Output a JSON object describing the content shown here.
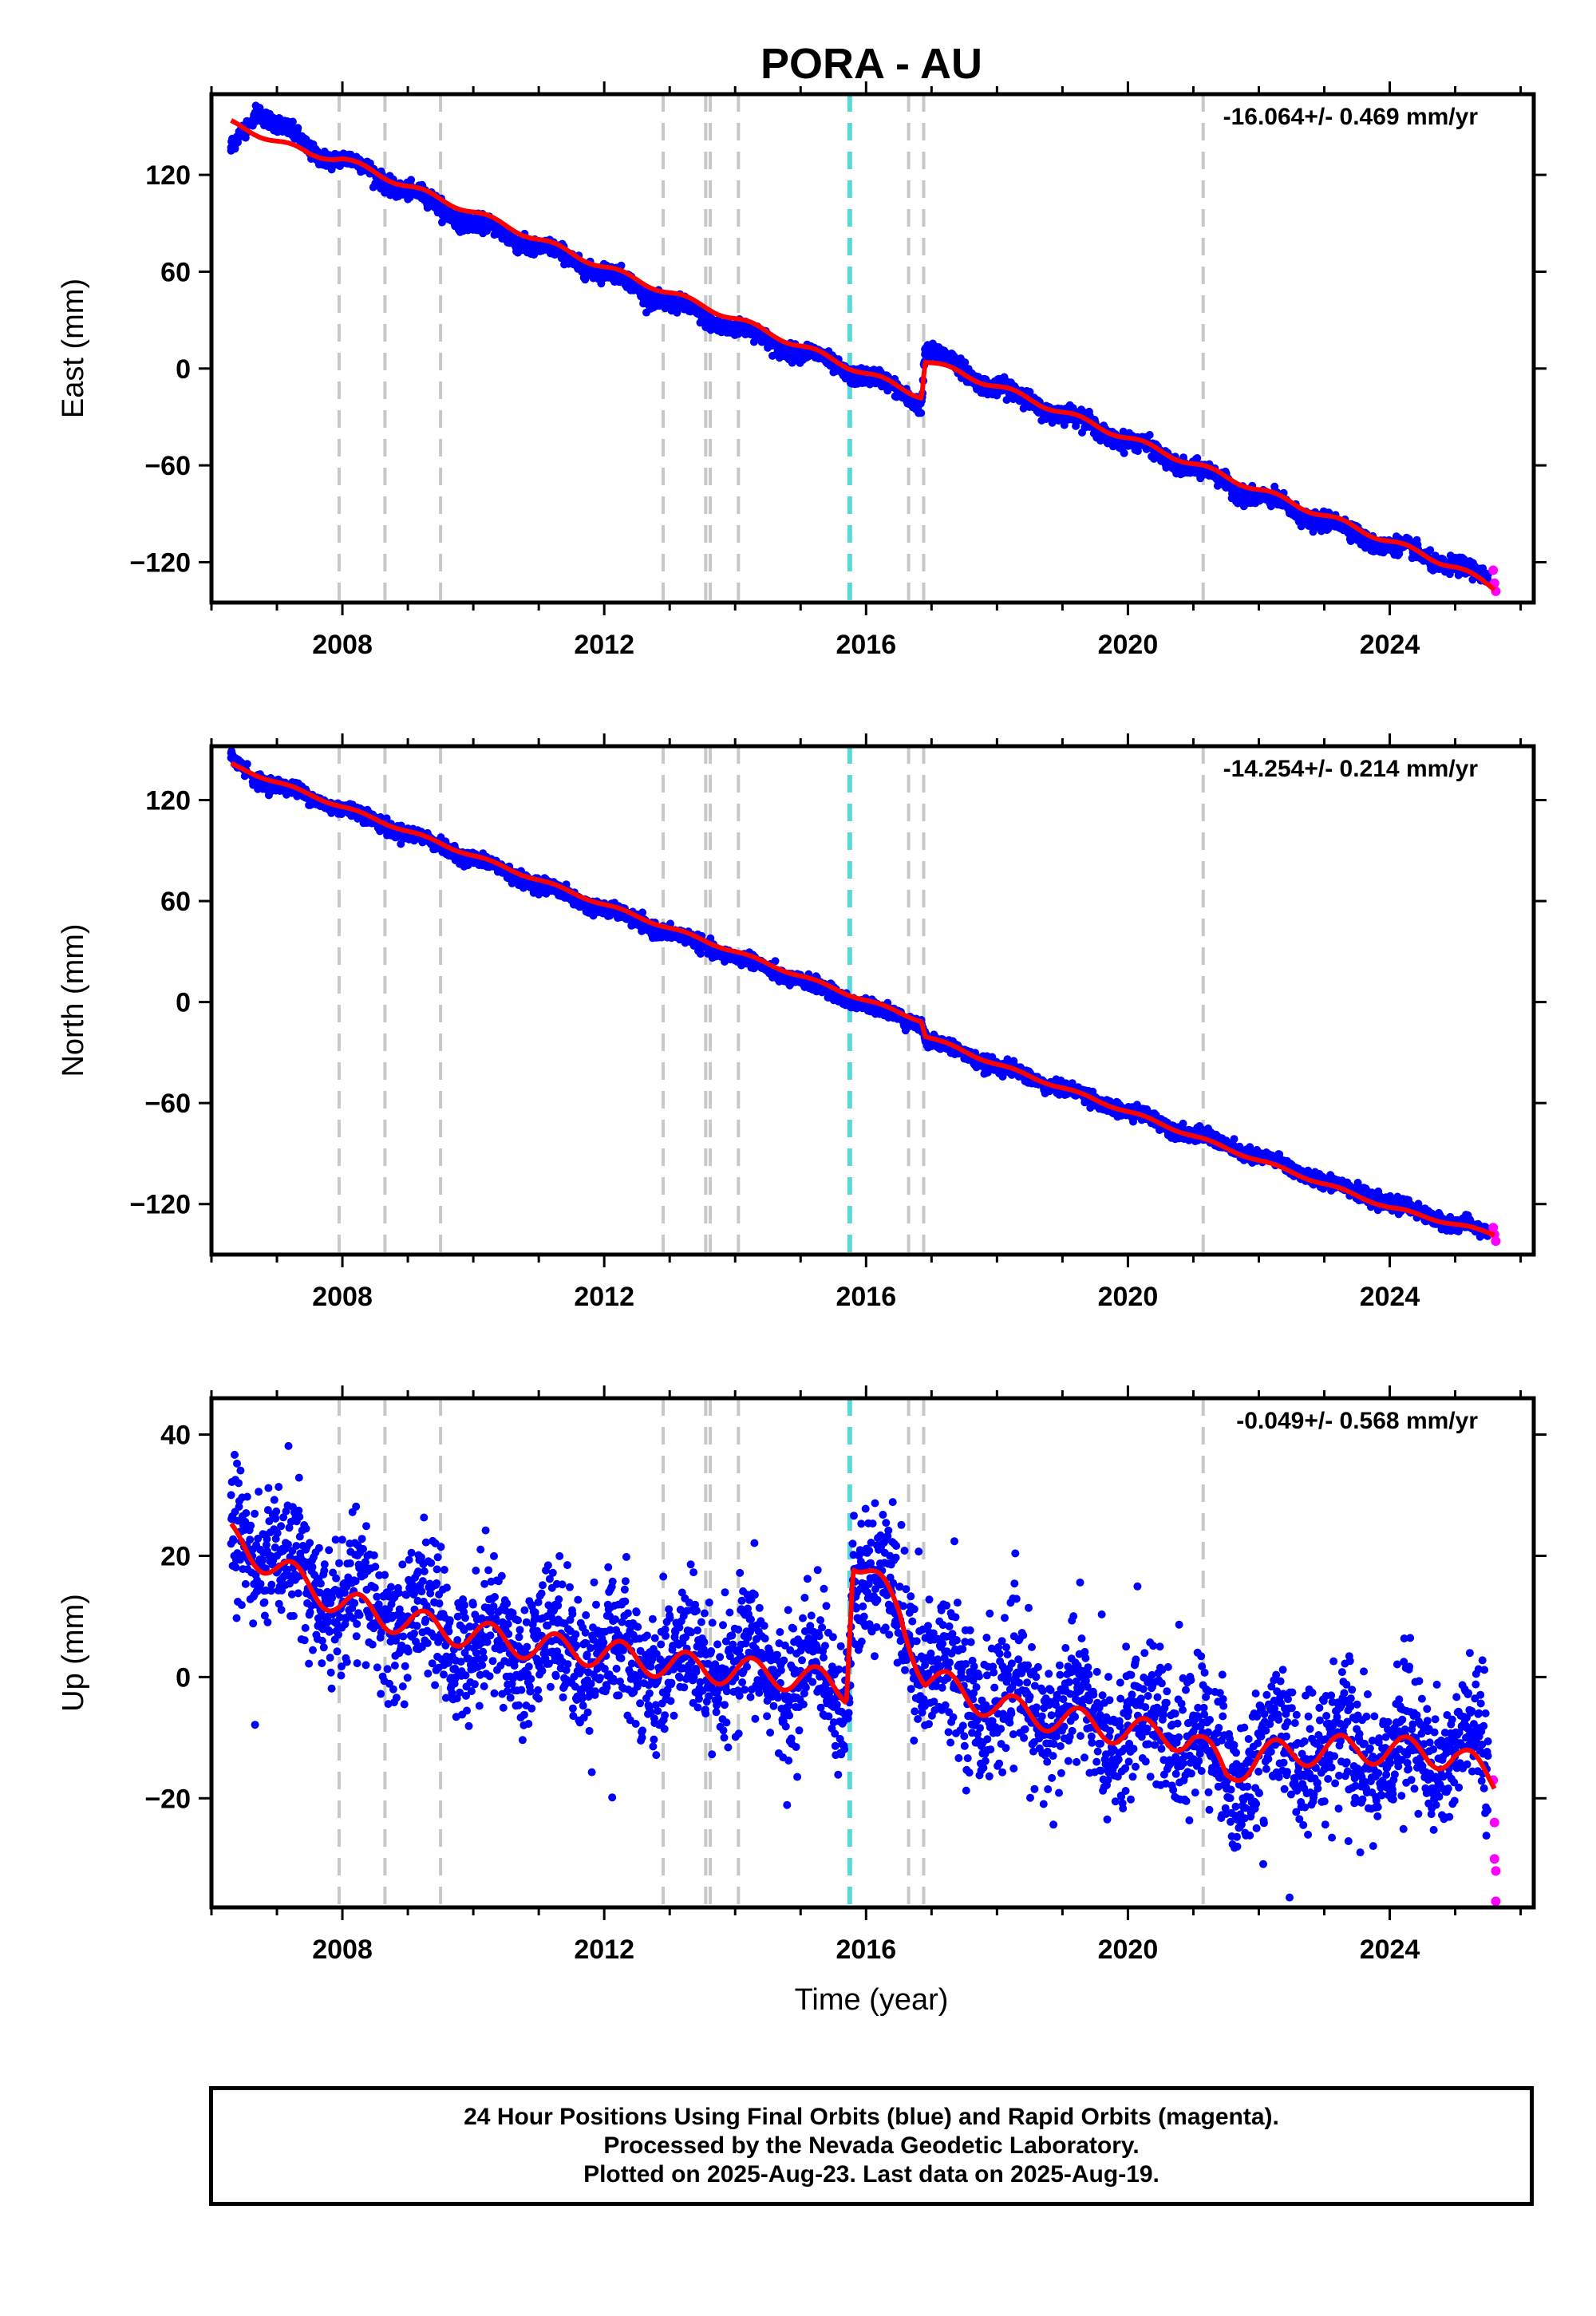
{
  "title": "PORA - AU",
  "xlabel": "Time (year)",
  "footer": {
    "line1": "24 Hour Positions Using Final Orbits (blue) and Rapid Orbits (magenta).",
    "line2": "Processed by the Nevada Geodetic Laboratory.",
    "line3": "Plotted on 2025-Aug-23. Last data on 2025-Aug-19."
  },
  "colors": {
    "final": "#0000ff",
    "rapid": "#ff00ff",
    "model": "#ff0000",
    "equipment_change": "#c8c8c8",
    "earthquake": "#5ad7d7"
  },
  "chart_data": [
    {
      "type": "scatter",
      "component": "East",
      "ylabel": "East (mm)",
      "rate_text": "-16.064+/- 0.469 mm/yr",
      "xlim": [
        2006.0,
        2026.2
      ],
      "ylim": [
        -145,
        170
      ],
      "xticks": [
        2008,
        2012,
        2016,
        2020,
        2024
      ],
      "yticks": [
        -120,
        -60,
        0,
        60,
        120
      ],
      "vlines_equipment": [
        2007.95,
        2008.65,
        2009.5,
        2012.9,
        2013.55,
        2013.62,
        2014.05,
        2016.65,
        2016.88,
        2021.15
      ],
      "vlines_earthquake": [
        2015.75
      ],
      "offsets": [
        {
          "x": 2016.88,
          "dy": 22
        }
      ],
      "series": [
        {
          "name": "Final Orbits",
          "x": [
            2006.3,
            2006.7,
            2007.5,
            2008.0,
            2009.0,
            2010.0,
            2011.0,
            2012.0,
            2013.0,
            2014.0,
            2015.0,
            2016.0,
            2016.85,
            2016.9,
            2018.0,
            2019.0,
            2020.0,
            2021.0,
            2022.0,
            2023.0,
            2024.0,
            2025.0,
            2025.5
          ],
          "y": [
            135,
            162,
            135,
            130,
            110,
            90,
            75,
            60,
            40,
            25,
            10,
            -5,
            -20,
            12,
            -12,
            -28,
            -45,
            -62,
            -80,
            -95,
            -110,
            -122,
            -132
          ]
        },
        {
          "name": "Rapid Orbits",
          "x": [
            2025.58,
            2025.6,
            2025.62
          ],
          "y": [
            -125,
            -133,
            -138
          ]
        },
        {
          "name": "Model",
          "x": [
            2006.3,
            2007.5,
            2008.0,
            2009.0,
            2010.0,
            2011.0,
            2012.0,
            2013.0,
            2014.0,
            2015.0,
            2016.0,
            2016.85,
            2016.9,
            2018.0,
            2019.0,
            2020.0,
            2021.0,
            2022.0,
            2023.0,
            2024.0,
            2025.0,
            2025.6
          ],
          "y": [
            152,
            133,
            130,
            113,
            97,
            80,
            63,
            47,
            31,
            14,
            -3,
            -17,
            5,
            -11,
            -27,
            -43,
            -59,
            -75,
            -91,
            -107,
            -123,
            -136
          ]
        }
      ]
    },
    {
      "type": "scatter",
      "component": "North",
      "ylabel": "North (mm)",
      "rate_text": "-14.254+/- 0.214 mm/yr",
      "xlim": [
        2006.0,
        2026.2
      ],
      "ylim": [
        -150,
        152
      ],
      "xticks": [
        2008,
        2012,
        2016,
        2020,
        2024
      ],
      "yticks": [
        -120,
        -60,
        0,
        60,
        120
      ],
      "vlines_equipment": [
        2007.95,
        2008.65,
        2009.5,
        2012.9,
        2013.55,
        2013.62,
        2014.05,
        2016.65,
        2016.88,
        2021.15
      ],
      "vlines_earthquake": [
        2015.75
      ],
      "offsets": [
        {
          "x": 2016.88,
          "dy": -9
        }
      ],
      "series": [
        {
          "name": "Final Orbits",
          "x": [
            2006.3,
            2006.7,
            2008.0,
            2010.0,
            2012.0,
            2014.0,
            2016.0,
            2016.85,
            2016.9,
            2018.0,
            2020.0,
            2022.0,
            2024.0,
            2025.5
          ],
          "y": [
            145,
            133,
            115,
            85,
            55,
            27,
            -2,
            -13,
            -22,
            -38,
            -65,
            -92,
            -120,
            -137
          ]
        },
        {
          "name": "Rapid Orbits",
          "x": [
            2025.58,
            2025.6,
            2025.62
          ],
          "y": [
            -134,
            -138,
            -142
          ]
        },
        {
          "name": "Model",
          "x": [
            2006.3,
            2006.7,
            2008.0,
            2010.0,
            2012.0,
            2014.0,
            2016.0,
            2016.85,
            2016.9,
            2018.0,
            2020.0,
            2022.0,
            2024.0,
            2025.6
          ],
          "y": [
            141,
            135,
            116,
            87,
            58,
            30,
            1,
            -11,
            -20,
            -37,
            -65,
            -94,
            -122,
            -138
          ]
        }
      ]
    },
    {
      "type": "scatter",
      "component": "Up",
      "ylabel": "Up (mm)",
      "rate_text": "-0.049+/- 0.568 mm/yr",
      "xlim": [
        2006.0,
        2026.2
      ],
      "ylim": [
        -38,
        46
      ],
      "xticks": [
        2008,
        2012,
        2016,
        2020,
        2024
      ],
      "yticks": [
        -20,
        0,
        20,
        40
      ],
      "vlines_equipment": [
        2007.95,
        2008.65,
        2009.5,
        2012.9,
        2013.55,
        2013.62,
        2014.05,
        2016.65,
        2016.88,
        2021.15
      ],
      "vlines_earthquake": [
        2015.75
      ],
      "offsets": [
        {
          "x": 2015.75,
          "dy": 22
        },
        {
          "x": 2016.88,
          "dy": -12
        }
      ],
      "series": [
        {
          "name": "Final Orbits",
          "x": [
            2006.3,
            2007.0,
            2008.0,
            2009.0,
            2010.0,
            2011.0,
            2012.0,
            2013.0,
            2014.0,
            2015.0,
            2015.7,
            2015.8,
            2016.5,
            2016.9,
            2018.0,
            2019.0,
            2020.0,
            2021.0,
            2021.5,
            2022.0,
            2023.0,
            2024.0,
            2025.0,
            2025.5
          ],
          "y": [
            22,
            20,
            12,
            10,
            6,
            5,
            4,
            2,
            1,
            1,
            -2,
            16,
            12,
            2,
            -4,
            -6,
            -8,
            -9,
            -16,
            -13,
            -12,
            -12,
            -12,
            -13
          ]
        },
        {
          "name": "Rapid Orbits",
          "x": [
            2025.58,
            2025.6,
            2025.6,
            2025.62,
            2025.62
          ],
          "y": [
            -17,
            -24,
            -30,
            -32,
            -37
          ]
        },
        {
          "name": "Model",
          "x": [
            2006.3,
            2007.0,
            2008.0,
            2009.0,
            2010.0,
            2011.0,
            2012.0,
            2013.0,
            2014.0,
            2015.0,
            2015.7,
            2015.8,
            2016.5,
            2016.9,
            2018.0,
            2019.0,
            2020.0,
            2021.0,
            2021.5,
            2022.0,
            2023.0,
            2024.0,
            2025.0,
            2025.6
          ],
          "y": [
            23,
            18,
            12,
            9,
            7,
            5,
            4,
            2,
            1,
            0,
            -2,
            20,
            11,
            0,
            -5,
            -7,
            -9,
            -10,
            -16,
            -13,
            -12,
            -12,
            -13,
            -17
          ]
        }
      ]
    }
  ]
}
